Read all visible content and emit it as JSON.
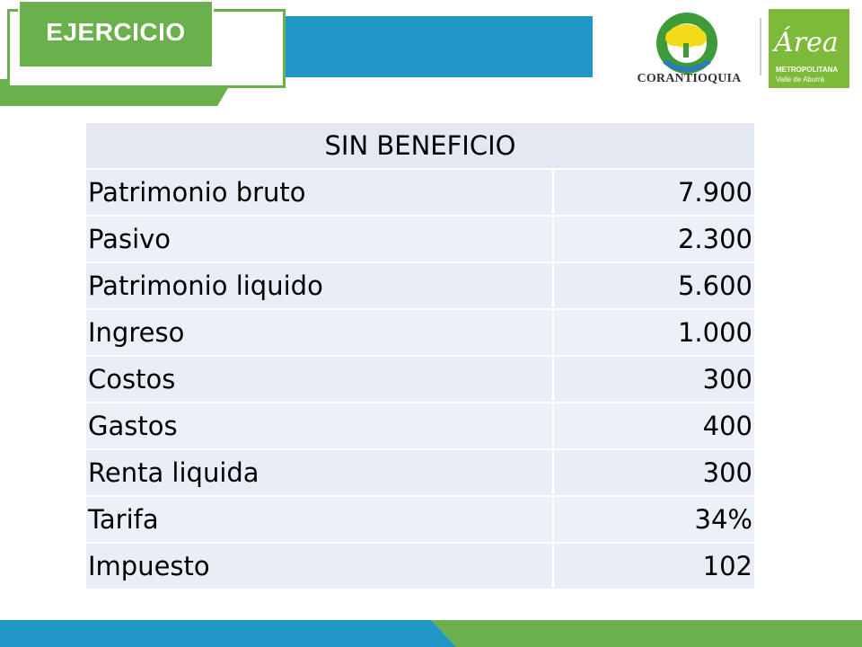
{
  "slide": {
    "title": "EJERCICIO"
  },
  "logos": {
    "corantioquia": "CORANTIOQUIA",
    "area_glyph": "Área",
    "area_line1": "METROPOLITANA",
    "area_line2": "Valle de Aburrá"
  },
  "colors": {
    "accent_green": "#6ab04c",
    "accent_blue": "#2196c7",
    "table_fill": "#e9edf5"
  },
  "table": {
    "header": "SIN BENEFICIO",
    "rows": [
      {
        "label": "Patrimonio bruto",
        "value": "7.900"
      },
      {
        "label": "Pasivo",
        "value": "2.300"
      },
      {
        "label": "Patrimonio liquido",
        "value": "5.600"
      },
      {
        "label": "Ingreso",
        "value": "1.000"
      },
      {
        "label": "Costos",
        "value": "300"
      },
      {
        "label": "Gastos",
        "value": "400"
      },
      {
        "label": "Renta liquida",
        "value": "300"
      },
      {
        "label": "Tarifa",
        "value": "34%"
      },
      {
        "label": "Impuesto",
        "value": "102"
      }
    ]
  }
}
